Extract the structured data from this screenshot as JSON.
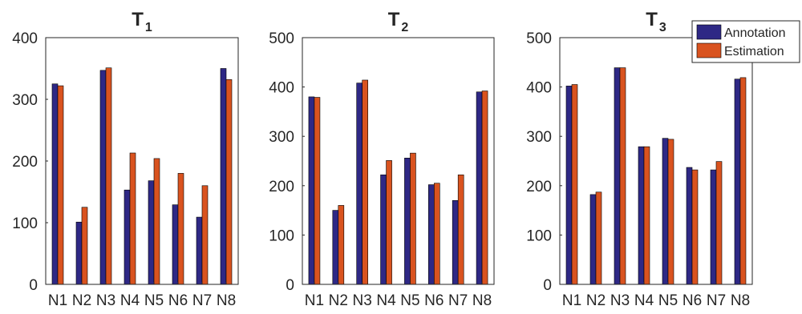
{
  "chart_data": [
    {
      "type": "bar",
      "title": "T",
      "title_subscript": "1",
      "categories": [
        "N1",
        "N2",
        "N3",
        "N4",
        "N5",
        "N6",
        "N7",
        "N8"
      ],
      "series": [
        {
          "name": "Annotation",
          "values": [
            325,
            101,
            347,
            153,
            168,
            129,
            109,
            350
          ]
        },
        {
          "name": "Estimation",
          "values": [
            322,
            125,
            351,
            213,
            204,
            180,
            160,
            332
          ]
        }
      ],
      "ylim": [
        0,
        400
      ],
      "yticks": [
        0,
        100,
        200,
        300,
        400
      ],
      "grid": false
    },
    {
      "type": "bar",
      "title": "T",
      "title_subscript": "2",
      "categories": [
        "N1",
        "N2",
        "N3",
        "N4",
        "N5",
        "N6",
        "N7",
        "N8"
      ],
      "series": [
        {
          "name": "Annotation",
          "values": [
            380,
            150,
            408,
            222,
            256,
            202,
            170,
            390
          ]
        },
        {
          "name": "Estimation",
          "values": [
            379,
            160,
            414,
            251,
            266,
            205,
            222,
            392
          ]
        }
      ],
      "ylim": [
        0,
        500
      ],
      "yticks": [
        0,
        100,
        200,
        300,
        400,
        500
      ],
      "grid": false
    },
    {
      "type": "bar",
      "title": "T",
      "title_subscript": "3",
      "categories": [
        "N1",
        "N2",
        "N3",
        "N4",
        "N5",
        "N6",
        "N7",
        "N8"
      ],
      "series": [
        {
          "name": "Annotation",
          "values": [
            402,
            182,
            439,
            279,
            296,
            237,
            232,
            416
          ]
        },
        {
          "name": "Estimation",
          "values": [
            405,
            187,
            439,
            279,
            294,
            232,
            249,
            419
          ]
        }
      ],
      "ylim": [
        0,
        500
      ],
      "yticks": [
        0,
        100,
        200,
        300,
        400,
        500
      ],
      "grid": false
    }
  ],
  "legend": {
    "placement": "top-right",
    "entries": [
      "Annotation",
      "Estimation"
    ]
  },
  "colors": {
    "annotation": "#2e2885",
    "estimation": "#d9531f",
    "axis": "#262626"
  }
}
